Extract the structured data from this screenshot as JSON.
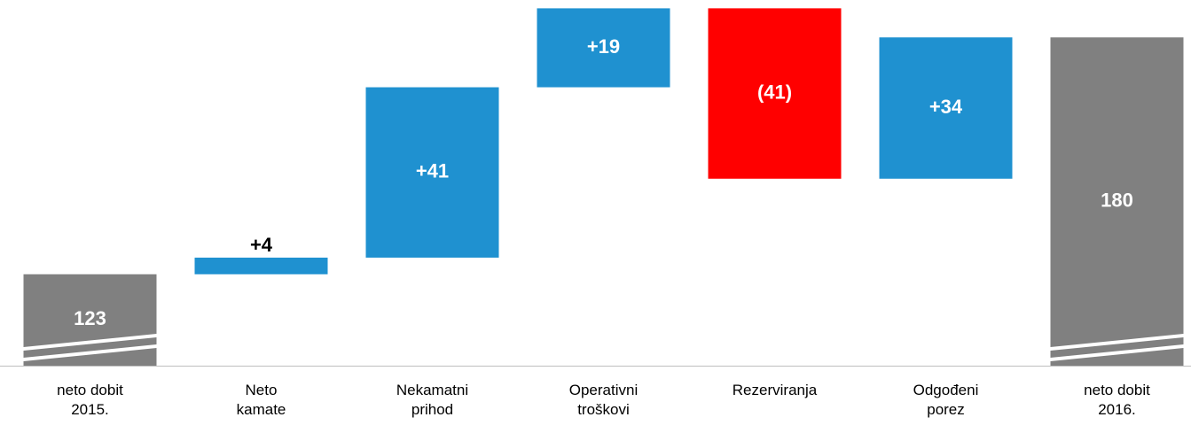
{
  "chart_data": {
    "type": "waterfall",
    "categories": [
      "neto dobit\n2015.",
      "Neto\nkamate",
      "Nekamatni\nprihod",
      "Operativni\ntroškovi",
      "Rezerviranja",
      "Odgođeni\nporez",
      "neto dobit\n2016."
    ],
    "values": [
      123,
      4,
      41,
      19,
      -41,
      34,
      180
    ],
    "value_labels": [
      "123",
      "+4",
      "+41",
      "+19",
      "(41)",
      "+34",
      "180"
    ],
    "colors": [
      "#808080",
      "#1f91d0",
      "#1f91d0",
      "#1f91d0",
      "#ff0000",
      "#1f91d0",
      "#808080"
    ],
    "ylim": [
      101,
      189
    ]
  }
}
